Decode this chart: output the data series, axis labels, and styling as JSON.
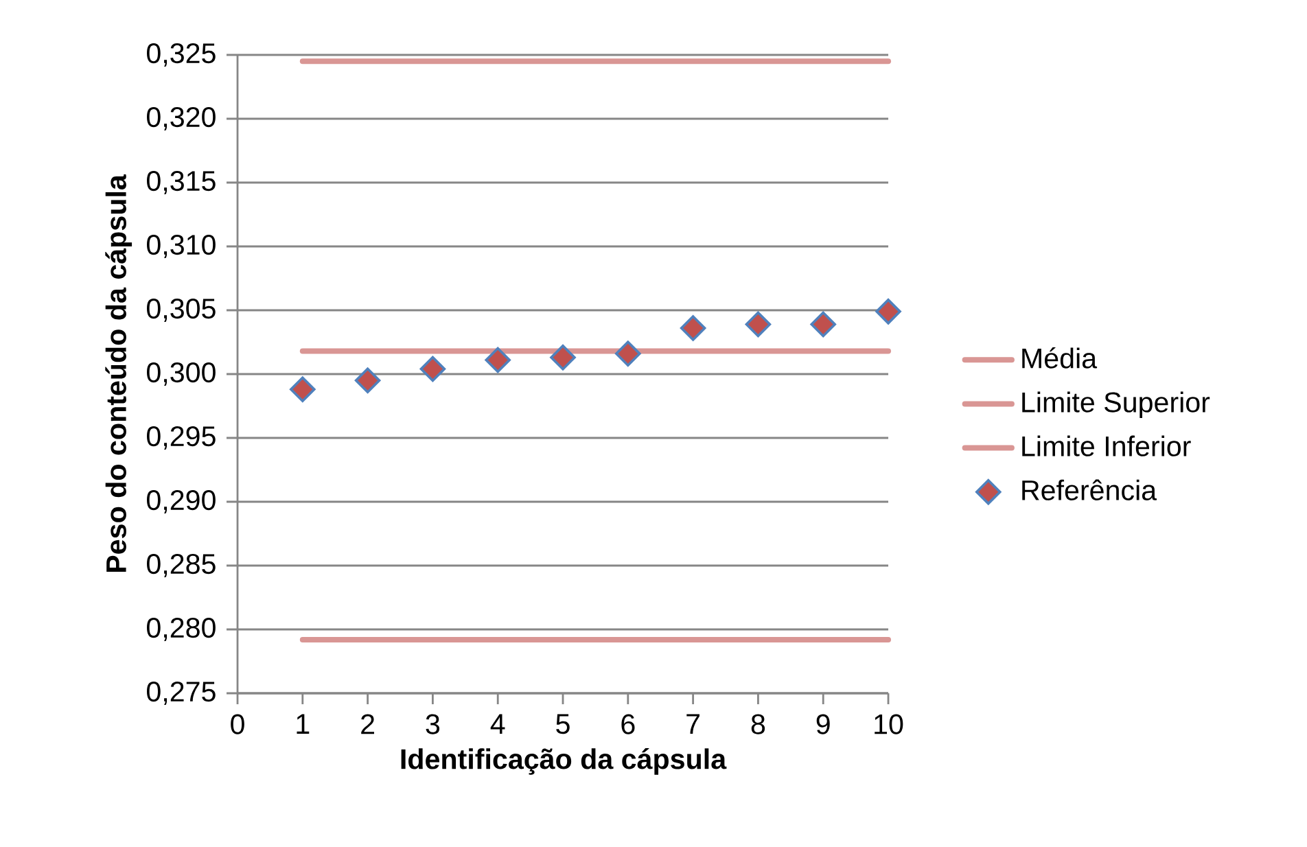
{
  "chart_data": {
    "type": "scatter",
    "xlabel": "Identificação da cápsula",
    "ylabel": "Peso do conteúdo da cápsula",
    "xlim": [
      0,
      10
    ],
    "xticks": [
      0,
      1,
      2,
      3,
      4,
      5,
      6,
      7,
      8,
      9,
      10
    ],
    "ylim": [
      0.275,
      0.325
    ],
    "yticks": [
      {
        "value": 0.275,
        "label": "0,275"
      },
      {
        "value": 0.28,
        "label": "0,280"
      },
      {
        "value": 0.285,
        "label": "0,285"
      },
      {
        "value": 0.29,
        "label": "0,290"
      },
      {
        "value": 0.295,
        "label": "0,295"
      },
      {
        "value": 0.3,
        "label": "0,300"
      },
      {
        "value": 0.305,
        "label": "0,305"
      },
      {
        "value": 0.31,
        "label": "0,310"
      },
      {
        "value": 0.315,
        "label": "0,315"
      },
      {
        "value": 0.32,
        "label": "0,320"
      },
      {
        "value": 0.325,
        "label": "0,325"
      }
    ],
    "grid": "y",
    "legend": "right",
    "series": [
      {
        "name": "Média",
        "type": "line",
        "color": "#d99694",
        "x": [
          1,
          10
        ],
        "values": [
          0.3018,
          0.3018
        ]
      },
      {
        "name": "Limite Superior",
        "type": "line",
        "color": "#d99694",
        "x": [
          1,
          10
        ],
        "values": [
          0.3245,
          0.3245
        ]
      },
      {
        "name": "Limite Inferior",
        "type": "line",
        "color": "#d99694",
        "x": [
          1,
          10
        ],
        "values": [
          0.2792,
          0.2792
        ]
      },
      {
        "name": "Referência",
        "marker": "diamond",
        "color": "#c0504d",
        "x": [
          1,
          2,
          3,
          4,
          5,
          6,
          7,
          8,
          9,
          10
        ],
        "values": [
          0.2988,
          0.2995,
          0.3004,
          0.3011,
          0.3013,
          0.3016,
          0.3036,
          0.3039,
          0.3039,
          0.3049
        ]
      }
    ]
  }
}
